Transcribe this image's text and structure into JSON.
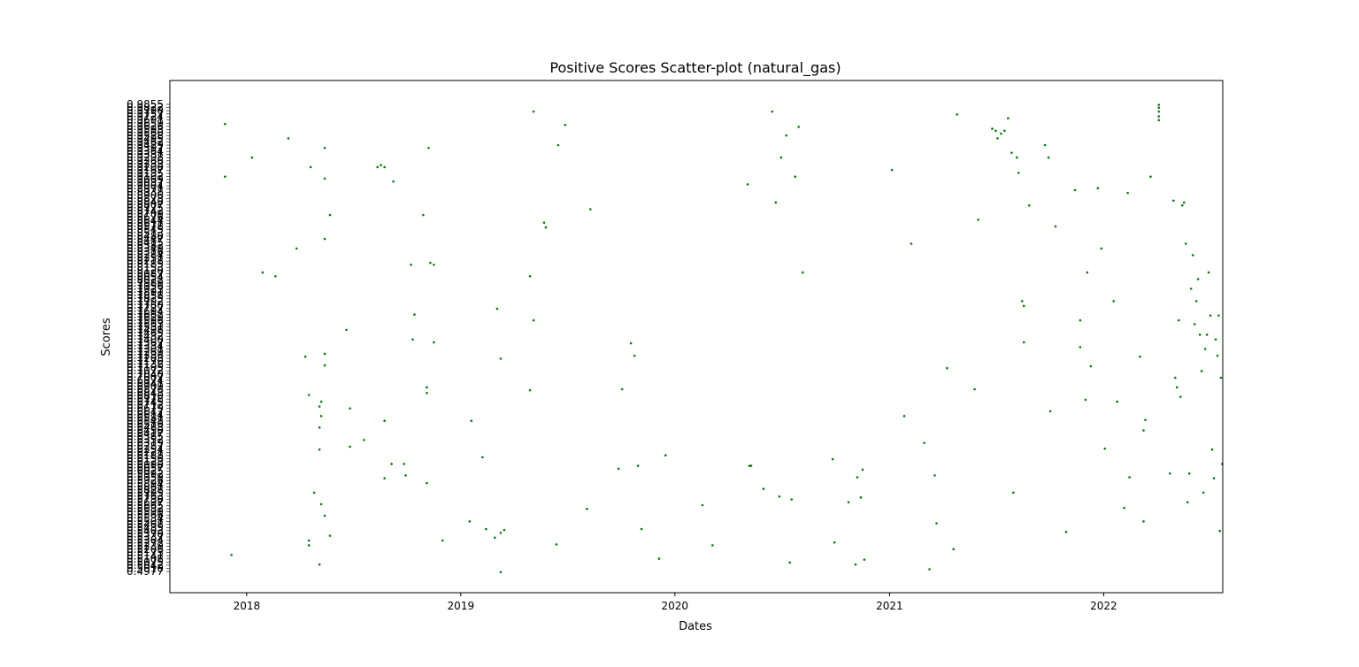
{
  "chart_data": {
    "type": "scatter",
    "title": "Positive Scores Scatter-plot (natural_gas)",
    "xlabel": "Dates",
    "ylabel": "Scores",
    "xlim": [
      "2017-08-23",
      "2022-07-23"
    ],
    "x_ticks": [
      "2018",
      "2019",
      "2020",
      "2021",
      "2022"
    ],
    "y_ticks_first": "0.4977",
    "y_ticks_last": "0.9855",
    "y_tick_count": 150,
    "marker_color": "#008000",
    "grid": false,
    "legend": "none",
    "points": [
      {
        "date": "2017-11-25",
        "score": 0.965
      },
      {
        "date": "2017-11-25",
        "score": 0.91
      },
      {
        "date": "2017-12-06",
        "score": 0.515
      },
      {
        "date": "2018-01-10",
        "score": 0.93
      },
      {
        "date": "2018-01-28",
        "score": 0.81
      },
      {
        "date": "2018-02-19",
        "score": 0.806
      },
      {
        "date": "2018-03-13",
        "score": 0.95
      },
      {
        "date": "2018-03-27",
        "score": 0.835
      },
      {
        "date": "2018-04-11",
        "score": 0.722
      },
      {
        "date": "2018-04-17",
        "score": 0.682
      },
      {
        "date": "2018-04-17",
        "score": 0.53
      },
      {
        "date": "2018-04-17",
        "score": 0.525
      },
      {
        "date": "2018-04-20",
        "score": 0.92
      },
      {
        "date": "2018-04-26",
        "score": 0.58
      },
      {
        "date": "2018-05-05",
        "score": 0.67
      },
      {
        "date": "2018-05-05",
        "score": 0.648
      },
      {
        "date": "2018-05-05",
        "score": 0.625
      },
      {
        "date": "2018-05-05",
        "score": 0.505
      },
      {
        "date": "2018-05-08",
        "score": 0.675
      },
      {
        "date": "2018-05-08",
        "score": 0.66
      },
      {
        "date": "2018-05-08",
        "score": 0.568
      },
      {
        "date": "2018-05-14",
        "score": 0.94
      },
      {
        "date": "2018-05-14",
        "score": 0.908
      },
      {
        "date": "2018-05-14",
        "score": 0.845
      },
      {
        "date": "2018-05-14",
        "score": 0.725
      },
      {
        "date": "2018-05-14",
        "score": 0.713
      },
      {
        "date": "2018-05-14",
        "score": 0.556
      },
      {
        "date": "2018-05-23",
        "score": 0.87
      },
      {
        "date": "2018-05-23",
        "score": 0.535
      },
      {
        "date": "2018-06-20",
        "score": 0.75
      },
      {
        "date": "2018-06-26",
        "score": 0.668
      },
      {
        "date": "2018-06-26",
        "score": 0.628
      },
      {
        "date": "2018-07-20",
        "score": 0.635
      },
      {
        "date": "2018-08-12",
        "score": 0.92
      },
      {
        "date": "2018-08-18",
        "score": 0.922
      },
      {
        "date": "2018-08-24",
        "score": 0.92
      },
      {
        "date": "2018-08-24",
        "score": 0.655
      },
      {
        "date": "2018-08-24",
        "score": 0.595
      },
      {
        "date": "2018-09-05",
        "score": 0.61
      },
      {
        "date": "2018-09-08",
        "score": 0.905
      },
      {
        "date": "2018-09-26",
        "score": 0.61
      },
      {
        "date": "2018-09-29",
        "score": 0.598
      },
      {
        "date": "2018-10-08",
        "score": 0.818
      },
      {
        "date": "2018-10-11",
        "score": 0.74
      },
      {
        "date": "2018-10-14",
        "score": 0.766
      },
      {
        "date": "2018-10-29",
        "score": 0.87
      },
      {
        "date": "2018-11-04",
        "score": 0.69
      },
      {
        "date": "2018-11-04",
        "score": 0.684
      },
      {
        "date": "2018-11-04",
        "score": 0.59
      },
      {
        "date": "2018-11-07",
        "score": 0.94
      },
      {
        "date": "2018-11-10",
        "score": 0.82
      },
      {
        "date": "2018-11-16",
        "score": 0.737
      },
      {
        "date": "2018-11-16",
        "score": 0.818
      },
      {
        "date": "2018-12-01",
        "score": 0.53
      },
      {
        "date": "2019-01-16",
        "score": 0.55
      },
      {
        "date": "2019-01-19",
        "score": 0.655
      },
      {
        "date": "2019-02-07",
        "score": 0.617
      },
      {
        "date": "2019-02-13",
        "score": 0.542
      },
      {
        "date": "2019-02-28",
        "score": 0.533
      },
      {
        "date": "2019-03-04",
        "score": 0.772
      },
      {
        "date": "2019-03-10",
        "score": 0.72
      },
      {
        "date": "2019-03-10",
        "score": 0.538
      },
      {
        "date": "2019-03-10",
        "score": 0.497
      },
      {
        "date": "2019-03-16",
        "score": 0.541
      },
      {
        "date": "2019-04-29",
        "score": 0.806
      },
      {
        "date": "2019-04-29",
        "score": 0.687
      },
      {
        "date": "2019-05-05",
        "score": 0.978
      },
      {
        "date": "2019-05-05",
        "score": 0.76
      },
      {
        "date": "2019-05-23",
        "score": 0.862
      },
      {
        "date": "2019-05-26",
        "score": 0.857
      },
      {
        "date": "2019-06-13",
        "score": 0.526
      },
      {
        "date": "2019-06-16",
        "score": 0.943
      },
      {
        "date": "2019-06-28",
        "score": 0.964
      },
      {
        "date": "2019-08-04",
        "score": 0.563
      },
      {
        "date": "2019-08-10",
        "score": 0.876
      },
      {
        "date": "2019-09-27",
        "score": 0.605
      },
      {
        "date": "2019-10-03",
        "score": 0.688
      },
      {
        "date": "2019-10-18",
        "score": 0.736
      },
      {
        "date": "2019-10-24",
        "score": 0.723
      },
      {
        "date": "2019-10-30",
        "score": 0.608
      },
      {
        "date": "2019-11-05",
        "score": 0.542
      },
      {
        "date": "2019-12-05",
        "score": 0.511
      },
      {
        "date": "2019-12-16",
        "score": 0.619
      },
      {
        "date": "2020-02-17",
        "score": 0.567
      },
      {
        "date": "2020-03-05",
        "score": 0.525
      },
      {
        "date": "2020-05-04",
        "score": 0.902
      },
      {
        "date": "2020-05-07",
        "score": 0.608
      },
      {
        "date": "2020-05-10",
        "score": 0.608
      },
      {
        "date": "2020-05-31",
        "score": 0.584
      },
      {
        "date": "2020-06-15",
        "score": 0.978
      },
      {
        "date": "2020-06-21",
        "score": 0.883
      },
      {
        "date": "2020-06-27",
        "score": 0.576
      },
      {
        "date": "2020-06-30",
        "score": 0.93
      },
      {
        "date": "2020-07-09",
        "score": 0.953
      },
      {
        "date": "2020-07-15",
        "score": 0.507
      },
      {
        "date": "2020-07-18",
        "score": 0.573
      },
      {
        "date": "2020-07-24",
        "score": 0.91
      },
      {
        "date": "2020-07-30",
        "score": 0.962
      },
      {
        "date": "2020-08-06",
        "score": 0.81
      },
      {
        "date": "2020-09-26",
        "score": 0.615
      },
      {
        "date": "2020-09-29",
        "score": 0.528
      },
      {
        "date": "2020-10-23",
        "score": 0.57
      },
      {
        "date": "2020-11-04",
        "score": 0.505
      },
      {
        "date": "2020-11-07",
        "score": 0.596
      },
      {
        "date": "2020-11-13",
        "score": 0.575
      },
      {
        "date": "2020-11-16",
        "score": 0.604
      },
      {
        "date": "2020-11-19",
        "score": 0.51
      },
      {
        "date": "2021-01-05",
        "score": 0.917
      },
      {
        "date": "2021-01-26",
        "score": 0.66
      },
      {
        "date": "2021-02-07",
        "score": 0.84
      },
      {
        "date": "2021-03-01",
        "score": 0.632
      },
      {
        "date": "2021-03-10",
        "score": 0.5
      },
      {
        "date": "2021-03-19",
        "score": 0.598
      },
      {
        "date": "2021-03-22",
        "score": 0.548
      },
      {
        "date": "2021-04-09",
        "score": 0.71
      },
      {
        "date": "2021-04-20",
        "score": 0.521
      },
      {
        "date": "2021-04-26",
        "score": 0.975
      },
      {
        "date": "2021-05-26",
        "score": 0.688
      },
      {
        "date": "2021-06-01",
        "score": 0.865
      },
      {
        "date": "2021-06-25",
        "score": 0.96
      },
      {
        "date": "2021-07-01",
        "score": 0.958
      },
      {
        "date": "2021-07-04",
        "score": 0.95
      },
      {
        "date": "2021-07-10",
        "score": 0.955
      },
      {
        "date": "2021-07-16",
        "score": 0.958
      },
      {
        "date": "2021-07-22",
        "score": 0.971
      },
      {
        "date": "2021-07-28",
        "score": 0.935
      },
      {
        "date": "2021-07-31",
        "score": 0.58
      },
      {
        "date": "2021-08-06",
        "score": 0.93
      },
      {
        "date": "2021-08-09",
        "score": 0.914
      },
      {
        "date": "2021-08-15",
        "score": 0.78
      },
      {
        "date": "2021-08-18",
        "score": 0.775
      },
      {
        "date": "2021-08-18",
        "score": 0.737
      },
      {
        "date": "2021-08-27",
        "score": 0.88
      },
      {
        "date": "2021-09-23",
        "score": 0.943
      },
      {
        "date": "2021-09-29",
        "score": 0.93
      },
      {
        "date": "2021-10-02",
        "score": 0.665
      },
      {
        "date": "2021-10-11",
        "score": 0.858
      },
      {
        "date": "2021-10-29",
        "score": 0.539
      },
      {
        "date": "2021-11-13",
        "score": 0.896
      },
      {
        "date": "2021-11-22",
        "score": 0.76
      },
      {
        "date": "2021-11-22",
        "score": 0.732
      },
      {
        "date": "2021-12-01",
        "score": 0.677
      },
      {
        "date": "2021-12-04",
        "score": 0.81
      },
      {
        "date": "2021-12-10",
        "score": 0.712
      },
      {
        "date": "2021-12-22",
        "score": 0.898
      },
      {
        "date": "2021-12-28",
        "score": 0.835
      },
      {
        "date": "2022-01-03",
        "score": 0.626
      },
      {
        "date": "2022-01-18",
        "score": 0.78
      },
      {
        "date": "2022-01-24",
        "score": 0.675
      },
      {
        "date": "2022-02-05",
        "score": 0.564
      },
      {
        "date": "2022-02-11",
        "score": 0.893
      },
      {
        "date": "2022-02-14",
        "score": 0.596
      },
      {
        "date": "2022-03-04",
        "score": 0.722
      },
      {
        "date": "2022-03-10",
        "score": 0.55
      },
      {
        "date": "2022-03-10",
        "score": 0.645
      },
      {
        "date": "2022-03-13",
        "score": 0.656
      },
      {
        "date": "2022-03-22",
        "score": 0.91
      },
      {
        "date": "2022-04-24",
        "score": 0.6
      },
      {
        "date": "2022-04-30",
        "score": 0.885
      },
      {
        "date": "2022-05-03",
        "score": 0.7
      },
      {
        "date": "2022-05-06",
        "score": 0.69
      },
      {
        "date": "2022-05-09",
        "score": 0.76
      },
      {
        "date": "2022-05-12",
        "score": 0.68
      },
      {
        "date": "2022-05-15",
        "score": 0.88
      },
      {
        "date": "2022-05-18",
        "score": 0.883
      },
      {
        "date": "2022-05-21",
        "score": 0.84
      },
      {
        "date": "2022-05-24",
        "score": 0.57
      },
      {
        "date": "2022-05-27",
        "score": 0.6
      },
      {
        "date": "2022-05-30",
        "score": 0.793
      },
      {
        "date": "2022-06-02",
        "score": 0.828
      },
      {
        "date": "2022-06-05",
        "score": 0.756
      },
      {
        "date": "2022-06-08",
        "score": 0.78
      },
      {
        "date": "2022-06-11",
        "score": 0.803
      },
      {
        "date": "2022-06-14",
        "score": 0.745
      },
      {
        "date": "2022-06-17",
        "score": 0.707
      },
      {
        "date": "2022-06-20",
        "score": 0.58
      },
      {
        "date": "2022-06-23",
        "score": 0.73
      },
      {
        "date": "2022-06-26",
        "score": 0.745
      },
      {
        "date": "2022-06-29",
        "score": 0.81
      },
      {
        "date": "2022-07-02",
        "score": 0.765
      },
      {
        "date": "2022-07-05",
        "score": 0.625
      },
      {
        "date": "2022-07-08",
        "score": 0.595
      },
      {
        "date": "2022-07-11",
        "score": 0.74
      },
      {
        "date": "2022-07-14",
        "score": 0.723
      },
      {
        "date": "2022-07-16",
        "score": 0.765
      },
      {
        "date": "2022-07-18",
        "score": 0.54
      },
      {
        "date": "2022-07-20",
        "score": 0.7
      },
      {
        "date": "2022-07-22",
        "score": 0.61
      },
      {
        "date": "2022-04-05",
        "score": 0.985
      },
      {
        "date": "2022-04-05",
        "score": 0.982
      },
      {
        "date": "2022-04-05",
        "score": 0.978
      },
      {
        "date": "2022-04-05",
        "score": 0.973
      },
      {
        "date": "2022-04-05",
        "score": 0.969
      }
    ]
  }
}
